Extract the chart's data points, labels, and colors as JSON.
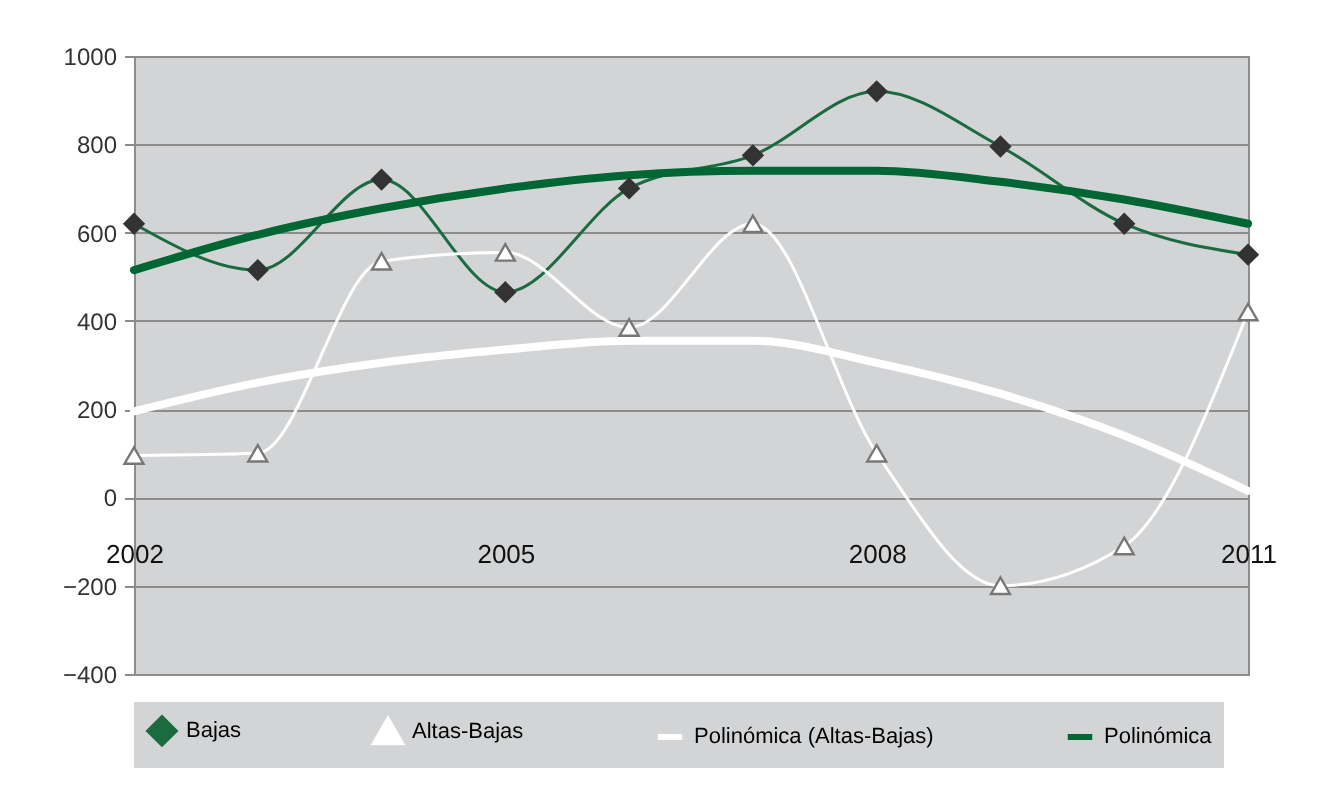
{
  "chart_data": {
    "type": "line",
    "categories": [
      "2002",
      null,
      null,
      "2005",
      null,
      null,
      "2008",
      null,
      null,
      "2011"
    ],
    "series": [
      {
        "name": "Bajas",
        "color": "#1a6b40",
        "marker": "diamond",
        "values": [
          620,
          515,
          720,
          465,
          700,
          775,
          920,
          795,
          620,
          550
        ]
      },
      {
        "name": "Altas-Bajas",
        "color": "#ffffff",
        "marker": "triangle",
        "values": [
          95,
          100,
          535,
          555,
          385,
          620,
          100,
          -200,
          -110,
          420
        ]
      },
      {
        "name": "Polinómica (Altas-Bajas)",
        "color": "#ffffff",
        "marker": "none",
        "values": [
          195,
          260,
          305,
          335,
          355,
          355,
          305,
          235,
          140,
          15
        ]
      },
      {
        "name": "Polinómica",
        "color": "#006633",
        "marker": "none",
        "values": [
          515,
          595,
          655,
          700,
          730,
          740,
          740,
          715,
          675,
          620
        ]
      }
    ],
    "ylim": [
      -400,
      1000
    ],
    "yticks": [
      -400,
      -200,
      0,
      200,
      400,
      600,
      800,
      1000
    ],
    "grid": "y",
    "legend": "bottom"
  }
}
